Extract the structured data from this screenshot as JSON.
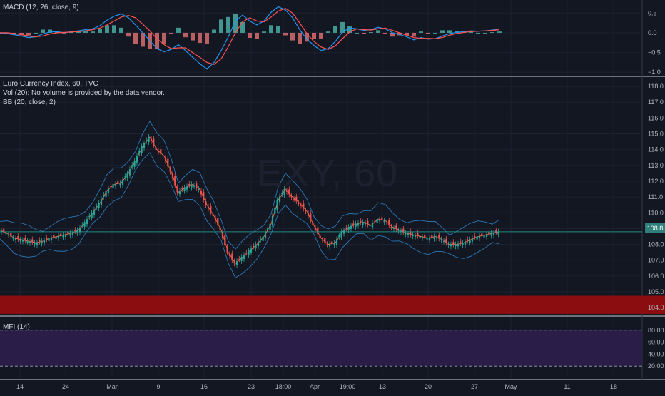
{
  "colors": {
    "background": "#131722",
    "grid": "#1e2230",
    "separator": "#c8ccd6",
    "up_candle": "#26a69a",
    "down_candle": "#ef5350",
    "macd_line": "#2196f3",
    "signal_line": "#ff5252",
    "bb_band": "#2a78b8",
    "bb_basis": "#ff6e40",
    "red_zone": "#8b0d10",
    "mfi_fill": "#2a1d48",
    "price_line": "#26a69a"
  },
  "macd_pane": {
    "legend": "MACD (12, 26, close, 9)",
    "ticks": [
      "0.5",
      "0.0",
      "−0.5",
      "−1.0"
    ]
  },
  "main_pane": {
    "legend_title": "Euro Currency Index, 60, TVC",
    "legend_vol": "Vol (20): No volume is provided by the data vendor.",
    "legend_bb": "BB (20, close, 2)",
    "watermark": "EXY, 60",
    "ticks": [
      "118.0",
      "117.0",
      "116.0",
      "115.0",
      "114.0",
      "113.0",
      "112.0",
      "111.0",
      "110.0",
      "109.0",
      "108.0",
      "107.0",
      "106.0",
      "105.0",
      "104.0"
    ],
    "last_price_label": "108.8"
  },
  "mfi_pane": {
    "legend": "MFI (14)",
    "ticks": [
      "80.00",
      "60.00",
      "40.00",
      "20.00"
    ]
  },
  "x_axis": {
    "labels": [
      "14",
      "24",
      "Mar",
      "9",
      "16",
      "23",
      "18:00",
      "Apr",
      "19:00",
      "13",
      "20",
      "27",
      "May",
      "11",
      "18"
    ]
  },
  "chart_data": [
    {
      "type": "line",
      "title": "MACD (12, 26, close, 9)",
      "ylim": [
        -1.05,
        0.65
      ],
      "series": [
        {
          "name": "MACD",
          "x": [
            0,
            10,
            20,
            30,
            40,
            50,
            60,
            70,
            80,
            90,
            100,
            110,
            120,
            130,
            140,
            150,
            160,
            170,
            180,
            190,
            200,
            210,
            220,
            230,
            240,
            250,
            260,
            270,
            280,
            290,
            300,
            310,
            320,
            330,
            340,
            350,
            360,
            370,
            380,
            390,
            400,
            410,
            420,
            430,
            440,
            450,
            460,
            470,
            480,
            490,
            500,
            510,
            520,
            530,
            540,
            550,
            560,
            570,
            580,
            590,
            600,
            610,
            620,
            630,
            640,
            650,
            660,
            670,
            680,
            690,
            700
          ],
          "values": [
            0,
            -0.02,
            -0.05,
            -0.08,
            -0.12,
            -0.1,
            -0.03,
            0.02,
            0.03,
            0.0,
            0.03,
            0.05,
            0.08,
            0.1,
            0.18,
            0.32,
            0.42,
            0.48,
            0.38,
            0.2,
            0.0,
            -0.2,
            -0.4,
            -0.48,
            -0.42,
            -0.3,
            -0.45,
            -0.62,
            -0.78,
            -0.92,
            -0.75,
            -0.45,
            -0.1,
            0.3,
            0.45,
            0.3,
            0.2,
            0.3,
            0.52,
            0.66,
            0.58,
            0.38,
            0.08,
            -0.16,
            -0.32,
            -0.45,
            -0.4,
            -0.22,
            0.02,
            0.12,
            0.1,
            0.06,
            0.08,
            0.14,
            0.1,
            0.0,
            -0.04,
            -0.1,
            -0.18,
            -0.12,
            -0.16,
            -0.15,
            -0.08,
            -0.02,
            0.01,
            0.03,
            0.05,
            0.04,
            0.05,
            0.07,
            0.1
          ]
        },
        {
          "name": "Signal",
          "x": [
            0,
            10,
            20,
            30,
            40,
            50,
            60,
            70,
            80,
            90,
            100,
            110,
            120,
            130,
            140,
            150,
            160,
            170,
            180,
            190,
            200,
            210,
            220,
            230,
            240,
            250,
            260,
            270,
            280,
            290,
            300,
            310,
            320,
            330,
            340,
            350,
            360,
            370,
            380,
            390,
            400,
            410,
            420,
            430,
            440,
            450,
            460,
            470,
            480,
            490,
            500,
            510,
            520,
            530,
            540,
            550,
            560,
            570,
            580,
            590,
            600,
            610,
            620,
            630,
            640,
            650,
            660,
            670,
            680,
            690,
            700
          ],
          "values": [
            0,
            0,
            -0.02,
            -0.05,
            -0.08,
            -0.1,
            -0.08,
            -0.03,
            0.0,
            0.01,
            0.02,
            0.03,
            0.05,
            0.08,
            0.12,
            0.2,
            0.3,
            0.4,
            0.44,
            0.38,
            0.22,
            0.05,
            -0.15,
            -0.3,
            -0.4,
            -0.38,
            -0.38,
            -0.5,
            -0.62,
            -0.75,
            -0.8,
            -0.66,
            -0.35,
            0.0,
            0.28,
            0.38,
            0.3,
            0.28,
            0.4,
            0.55,
            0.62,
            0.5,
            0.25,
            -0.02,
            -0.22,
            -0.36,
            -0.42,
            -0.33,
            -0.15,
            0.02,
            0.1,
            0.08,
            0.07,
            0.1,
            0.12,
            0.06,
            0.0,
            -0.06,
            -0.12,
            -0.14,
            -0.14,
            -0.15,
            -0.12,
            -0.06,
            -0.02,
            0.01,
            0.03,
            0.04,
            0.05,
            0.06,
            0.08
          ]
        }
      ]
    },
    {
      "type": "line",
      "title": "Euro Currency Index, 60, TVC",
      "ylim": [
        103.6,
        118.5
      ],
      "series": [
        {
          "name": "Close",
          "x": [
            0,
            10,
            20,
            30,
            40,
            50,
            60,
            70,
            80,
            90,
            100,
            110,
            120,
            130,
            140,
            150,
            160,
            170,
            180,
            190,
            200,
            210,
            220,
            230,
            240,
            250,
            260,
            270,
            280,
            290,
            300,
            310,
            320,
            330,
            340,
            350,
            360,
            370,
            380,
            390,
            400,
            410,
            420,
            430,
            440,
            450,
            460,
            470,
            480,
            490,
            500,
            510,
            520,
            530,
            540,
            550,
            560,
            570,
            580,
            590,
            600,
            610,
            620,
            630,
            640,
            650,
            660,
            670,
            680,
            690,
            700
          ],
          "values": [
            108.9,
            108.7,
            108.4,
            108.3,
            108.2,
            108.1,
            108.2,
            108.4,
            108.5,
            108.6,
            108.7,
            108.9,
            109.4,
            110.0,
            110.6,
            111.4,
            111.8,
            111.9,
            112.5,
            113.3,
            114.2,
            114.8,
            114.0,
            113.6,
            112.6,
            111.3,
            111.6,
            111.8,
            111.5,
            110.5,
            109.8,
            108.9,
            107.5,
            106.8,
            107.2,
            107.6,
            108.0,
            108.5,
            109.3,
            110.8,
            111.5,
            111.0,
            110.6,
            110.1,
            109.2,
            108.4,
            108.0,
            108.1,
            108.8,
            109.1,
            109.3,
            109.4,
            109.2,
            109.6,
            109.5,
            109.1,
            108.9,
            108.7,
            108.6,
            108.5,
            108.4,
            108.5,
            108.3,
            108.0,
            108.0,
            108.1,
            108.3,
            108.5,
            108.6,
            108.7,
            108.8
          ]
        }
      ]
    }
  ]
}
